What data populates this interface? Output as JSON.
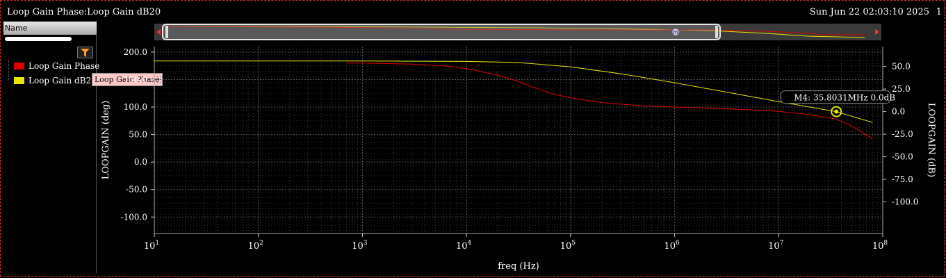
{
  "window": {
    "title": "Loop Gain Phase:Loop Gain dB20",
    "datetime": "Sun Jun 22 02:03:10 2025",
    "number": "1"
  },
  "sidebar": {
    "name_header": "Name",
    "filter_icon": "funnel-icon",
    "traces": [
      {
        "label": "Loop Gain Phase",
        "color": "#e00000"
      },
      {
        "label": "Loop Gain dB20",
        "color": "#e6e600"
      }
    ],
    "tooltip": "Loop Gain Phase"
  },
  "overview": {
    "marker_label": "m"
  },
  "chart_data": {
    "type": "line",
    "xlabel": "freq (Hz)",
    "ylabel_left": "LOOPGAIN (deg)",
    "ylabel_right": "LOOPGAIN (dB)",
    "x_scale": "log",
    "xlim": [
      10,
      100000000
    ],
    "ylim_left": [
      -130,
      210
    ],
    "ylim_right": [
      -135,
      72
    ],
    "x_ticks": [
      "10",
      "100",
      "1000",
      "10000",
      "100000",
      "1000000",
      "10000000",
      "100000000"
    ],
    "y_ticks_left": [
      "200.0",
      "150.0",
      "100.0",
      "50.0",
      "0.0",
      "-50.0",
      "-100.0"
    ],
    "y_ticks_right": [
      "50.0",
      "25.0",
      "0.0",
      "-25.0",
      "-50.0",
      "-75.0",
      "-100.0"
    ],
    "grid": true,
    "series": [
      {
        "name": "Loop Gain Phase",
        "axis": "left",
        "color": "#e00000",
        "x": [
          700,
          1000,
          3000,
          6000,
          10000,
          20000,
          30000,
          50000,
          70000,
          100000,
          200000,
          500000,
          1000000,
          3000000,
          7000000,
          10000000,
          20000000,
          35800000,
          50000000,
          80000000
        ],
        "y": [
          180,
          180,
          178,
          175,
          170,
          158,
          148,
          132,
          123,
          117,
          108,
          102,
          100,
          97,
          94,
          92,
          86,
          78,
          66,
          42
        ]
      },
      {
        "name": "Loop Gain dB20",
        "axis": "right",
        "color": "#e6e600",
        "x": [
          10,
          1000,
          10000,
          30000,
          100000,
          300000,
          1000000,
          3000000,
          10000000,
          35800000,
          80000000
        ],
        "y": [
          56,
          56,
          55.5,
          54.5,
          49.5,
          42,
          32,
          22,
          11,
          0,
          -12
        ]
      }
    ],
    "markers": [
      {
        "name": "M4",
        "label": "M4: 35.8031MHz 0.0dB",
        "x": 35803100,
        "y": 0.0,
        "axis": "right"
      }
    ]
  }
}
